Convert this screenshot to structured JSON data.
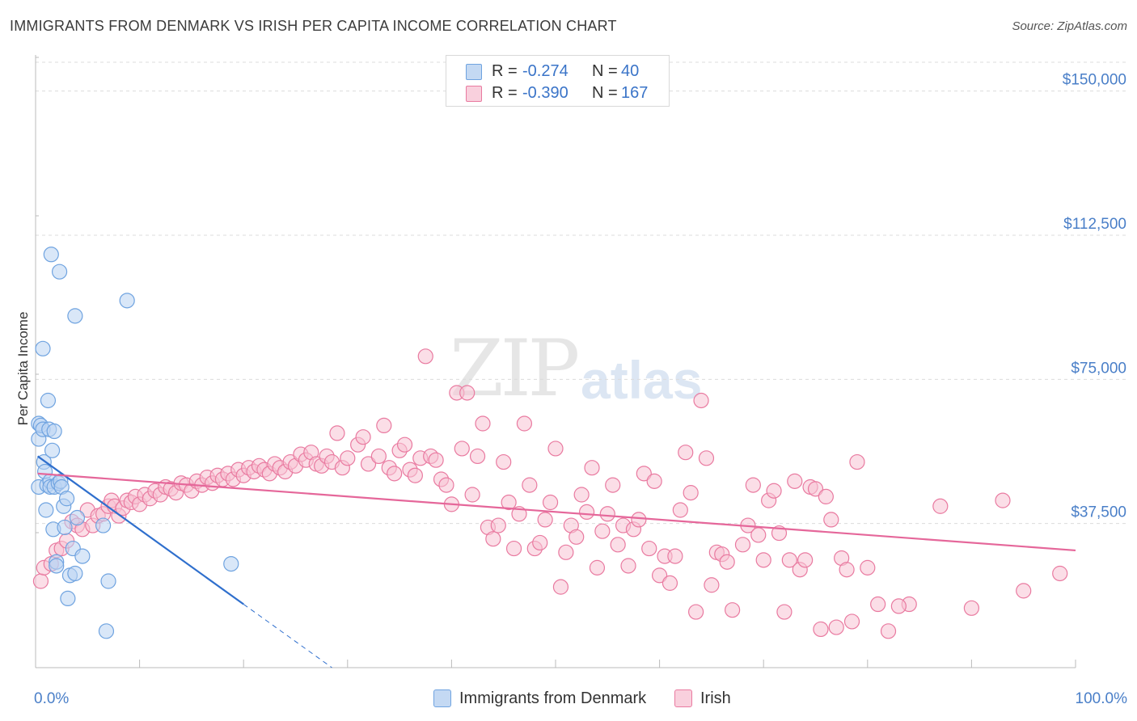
{
  "title": "IMMIGRANTS FROM DENMARK VS IRISH PER CAPITA INCOME CORRELATION CHART",
  "source": "Source: ZipAtlas.com",
  "watermark": {
    "zip": "ZIP",
    "atlas": "atlas"
  },
  "colors": {
    "blue": "#6fa3e0",
    "blue_fill": "#b9d3f3",
    "blue_line": "#2f6fcd",
    "pink": "#e97aa0",
    "pink_fill": "#f7c3d4",
    "pink_line": "#e5679a",
    "tick_text": "#4a7fc8",
    "grid": "#dcdcdc"
  },
  "legend": {
    "rows": [
      {
        "r_label": "R =",
        "r_value": "-0.274",
        "n_label": "N =",
        "n_value": "40"
      },
      {
        "r_label": "R =",
        "r_value": "-0.390",
        "n_label": "N =",
        "n_value": "167"
      }
    ]
  },
  "bottom_legend": {
    "series1": "Immigrants from Denmark",
    "series2": "Irish"
  },
  "chart_data": {
    "type": "scatter",
    "ylabel": "Per Capita Income",
    "xlim": [
      0,
      100
    ],
    "ylim": [
      0,
      157500
    ],
    "x_tick_labels": {
      "left": "0.0%",
      "right": "100.0%"
    },
    "y_ticks": [
      {
        "value": 37500,
        "label": "$37,500"
      },
      {
        "value": 75000,
        "label": "$75,000"
      },
      {
        "value": 112500,
        "label": "$112,500"
      },
      {
        "value": 150000,
        "label": "$150,000"
      }
    ],
    "grid": "horizontal dashed",
    "series": [
      {
        "name": "Immigrants from Denmark",
        "color": "#6fa3e0",
        "trend": {
          "x0": 0.2,
          "y0": 55000,
          "x1": 20,
          "y1": 16500,
          "dash_x1": 28.5,
          "dash_y1": 0
        },
        "points": [
          [
            0.3,
            47000
          ],
          [
            0.3,
            59500
          ],
          [
            0.3,
            63500
          ],
          [
            0.5,
            63000
          ],
          [
            0.7,
            83000
          ],
          [
            0.7,
            62000
          ],
          [
            0.8,
            53500
          ],
          [
            0.9,
            51000
          ],
          [
            1.0,
            41000
          ],
          [
            1.1,
            47500
          ],
          [
            1.2,
            69500
          ],
          [
            1.3,
            62000
          ],
          [
            1.4,
            48500
          ],
          [
            1.4,
            47000
          ],
          [
            1.5,
            107500
          ],
          [
            1.6,
            56500
          ],
          [
            1.7,
            36000
          ],
          [
            1.8,
            47000
          ],
          [
            1.8,
            61500
          ],
          [
            2.0,
            27500
          ],
          [
            2.0,
            26500
          ],
          [
            2.2,
            48000
          ],
          [
            2.4,
            48500
          ],
          [
            2.5,
            47000
          ],
          [
            2.3,
            103000
          ],
          [
            2.7,
            42000
          ],
          [
            2.8,
            36500
          ],
          [
            3.0,
            44000
          ],
          [
            3.1,
            18000
          ],
          [
            3.3,
            24000
          ],
          [
            3.6,
            31000
          ],
          [
            3.8,
            91500
          ],
          [
            3.8,
            24500
          ],
          [
            4.0,
            39000
          ],
          [
            4.5,
            29000
          ],
          [
            6.5,
            37000
          ],
          [
            7.0,
            22500
          ],
          [
            6.8,
            9500
          ],
          [
            8.8,
            95500
          ],
          [
            18.8,
            27000
          ]
        ]
      },
      {
        "name": "Irish",
        "color": "#e97aa0",
        "trend": {
          "x0": 0.2,
          "y0": 50500,
          "x1": 100,
          "y1": 30500
        },
        "points": [
          [
            0.5,
            22500
          ],
          [
            0.8,
            26000
          ],
          [
            1.5,
            27000
          ],
          [
            2.0,
            30500
          ],
          [
            2.5,
            31000
          ],
          [
            3.0,
            33000
          ],
          [
            3.5,
            38000
          ],
          [
            4.0,
            37000
          ],
          [
            4.5,
            36000
          ],
          [
            5.0,
            41000
          ],
          [
            5.5,
            37000
          ],
          [
            6.0,
            39500
          ],
          [
            6.5,
            40000
          ],
          [
            7.0,
            42000
          ],
          [
            7.3,
            43500
          ],
          [
            7.6,
            42000
          ],
          [
            8.0,
            39500
          ],
          [
            8.4,
            41500
          ],
          [
            8.8,
            43500
          ],
          [
            9.2,
            43000
          ],
          [
            9.6,
            44500
          ],
          [
            10.0,
            42500
          ],
          [
            10.5,
            45000
          ],
          [
            11.0,
            44000
          ],
          [
            11.5,
            46000
          ],
          [
            12.0,
            45000
          ],
          [
            12.5,
            47000
          ],
          [
            13.0,
            46500
          ],
          [
            13.5,
            45500
          ],
          [
            14.0,
            48000
          ],
          [
            14.5,
            47500
          ],
          [
            15.0,
            46000
          ],
          [
            15.5,
            48500
          ],
          [
            16.0,
            47500
          ],
          [
            16.5,
            49500
          ],
          [
            17.0,
            48000
          ],
          [
            17.5,
            50000
          ],
          [
            18.0,
            49000
          ],
          [
            18.5,
            50500
          ],
          [
            19.0,
            49000
          ],
          [
            19.5,
            51500
          ],
          [
            20.0,
            50000
          ],
          [
            20.5,
            52000
          ],
          [
            21.0,
            51000
          ],
          [
            21.5,
            52500
          ],
          [
            22.0,
            51500
          ],
          [
            22.5,
            50500
          ],
          [
            23.0,
            53000
          ],
          [
            23.5,
            52000
          ],
          [
            24.0,
            51000
          ],
          [
            24.5,
            53500
          ],
          [
            25.0,
            52500
          ],
          [
            25.5,
            55500
          ],
          [
            26.0,
            54000
          ],
          [
            26.5,
            56000
          ],
          [
            27.0,
            53000
          ],
          [
            27.5,
            52500
          ],
          [
            28.0,
            55000
          ],
          [
            28.5,
            53500
          ],
          [
            29.0,
            61000
          ],
          [
            29.5,
            52000
          ],
          [
            30.0,
            54500
          ],
          [
            31.0,
            58000
          ],
          [
            31.5,
            60000
          ],
          [
            32.0,
            53000
          ],
          [
            33.0,
            55000
          ],
          [
            33.5,
            63000
          ],
          [
            34.0,
            52000
          ],
          [
            34.5,
            50500
          ],
          [
            35.0,
            56500
          ],
          [
            35.5,
            58000
          ],
          [
            36.0,
            51500
          ],
          [
            36.5,
            50000
          ],
          [
            37.0,
            54500
          ],
          [
            37.5,
            81000
          ],
          [
            38.0,
            55000
          ],
          [
            38.5,
            54000
          ],
          [
            39.0,
            49000
          ],
          [
            39.5,
            47500
          ],
          [
            40.0,
            42500
          ],
          [
            40.5,
            71500
          ],
          [
            41.0,
            57000
          ],
          [
            41.5,
            71500
          ],
          [
            42.0,
            45000
          ],
          [
            42.5,
            55000
          ],
          [
            43.0,
            63500
          ],
          [
            43.5,
            36500
          ],
          [
            44.0,
            33500
          ],
          [
            44.5,
            37000
          ],
          [
            45.0,
            53500
          ],
          [
            45.5,
            43000
          ],
          [
            46.0,
            31000
          ],
          [
            46.5,
            40000
          ],
          [
            47.0,
            63500
          ],
          [
            47.5,
            47500
          ],
          [
            48.0,
            31000
          ],
          [
            48.5,
            32500
          ],
          [
            49.0,
            38500
          ],
          [
            49.5,
            43000
          ],
          [
            50.0,
            57000
          ],
          [
            50.5,
            21000
          ],
          [
            51.0,
            30000
          ],
          [
            51.5,
            37000
          ],
          [
            52.0,
            34000
          ],
          [
            52.5,
            45000
          ],
          [
            53.0,
            40500
          ],
          [
            53.5,
            52000
          ],
          [
            54.0,
            26000
          ],
          [
            54.5,
            35500
          ],
          [
            55.0,
            40000
          ],
          [
            55.5,
            47500
          ],
          [
            56.0,
            32000
          ],
          [
            56.5,
            37000
          ],
          [
            57.0,
            26500
          ],
          [
            57.5,
            36000
          ],
          [
            58.0,
            38500
          ],
          [
            58.5,
            50500
          ],
          [
            59.0,
            31000
          ],
          [
            59.5,
            48500
          ],
          [
            60.0,
            24000
          ],
          [
            60.5,
            29000
          ],
          [
            61.0,
            22000
          ],
          [
            61.5,
            29000
          ],
          [
            62.0,
            41000
          ],
          [
            62.5,
            56000
          ],
          [
            63.0,
            45500
          ],
          [
            63.5,
            14500
          ],
          [
            64.0,
            69500
          ],
          [
            64.5,
            54500
          ],
          [
            65.0,
            21500
          ],
          [
            65.5,
            30000
          ],
          [
            66.0,
            29500
          ],
          [
            66.5,
            27500
          ],
          [
            67.0,
            15000
          ],
          [
            68.0,
            32000
          ],
          [
            68.5,
            37000
          ],
          [
            69.0,
            47500
          ],
          [
            69.5,
            34500
          ],
          [
            70.0,
            28000
          ],
          [
            70.5,
            43500
          ],
          [
            71.0,
            46000
          ],
          [
            71.5,
            35000
          ],
          [
            72.0,
            14500
          ],
          [
            72.5,
            28000
          ],
          [
            73.0,
            48500
          ],
          [
            73.5,
            25500
          ],
          [
            74.0,
            28000
          ],
          [
            74.5,
            47000
          ],
          [
            75.0,
            46500
          ],
          [
            75.5,
            10000
          ],
          [
            76.0,
            44500
          ],
          [
            76.5,
            38500
          ],
          [
            77.0,
            10500
          ],
          [
            77.5,
            28500
          ],
          [
            78.0,
            25500
          ],
          [
            78.5,
            12000
          ],
          [
            79.0,
            53500
          ],
          [
            80.0,
            26000
          ],
          [
            81.0,
            16500
          ],
          [
            82.0,
            9500
          ],
          [
            84.0,
            16500
          ],
          [
            87.0,
            42000
          ],
          [
            90.0,
            15500
          ],
          [
            93.0,
            43500
          ],
          [
            95.0,
            20000
          ],
          [
            98.5,
            24500
          ],
          [
            83.0,
            16000
          ]
        ]
      }
    ]
  }
}
